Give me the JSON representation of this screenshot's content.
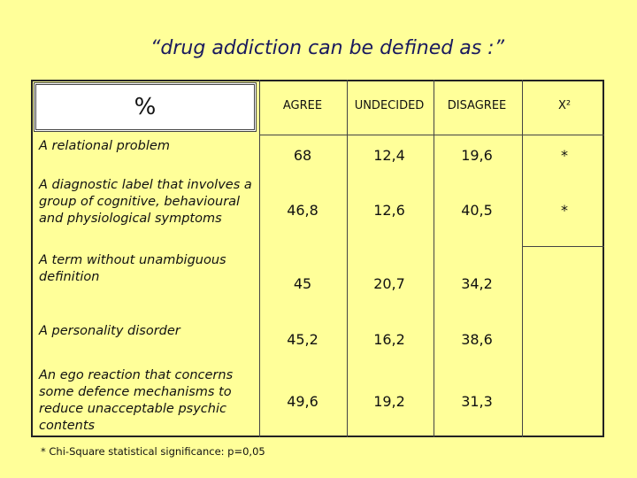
{
  "title": "“drug addiction can be defined as :”",
  "table": {
    "corner": "%",
    "columns": [
      "AGREE",
      "UNDECIDED",
      "DISAGREE",
      "X²"
    ],
    "rows": [
      {
        "label": "A relational problem",
        "agree": "68",
        "undecided": "12,4",
        "disagree": "19,6",
        "chi": "*"
      },
      {
        "label": "A diagnostic label that involves a group of cognitive, behavioural and physiological symptoms",
        "agree": "46,8",
        "undecided": "12,6",
        "disagree": "40,5",
        "chi": "*"
      },
      {
        "label": "A term without unambiguous definition",
        "agree": "45",
        "undecided": "20,7",
        "disagree": "34,2"
      },
      {
        "label": "A personality disorder",
        "agree": "45,2",
        "undecided": "16,2",
        "disagree": "38,6"
      },
      {
        "label": "An ego reaction that concerns some defence mechanisms to reduce unacceptable psychic contents",
        "agree": "49,6",
        "undecided": "19,2",
        "disagree": "31,3"
      }
    ]
  },
  "footnote": "* Chi-Square statistical significance: p=0,05"
}
